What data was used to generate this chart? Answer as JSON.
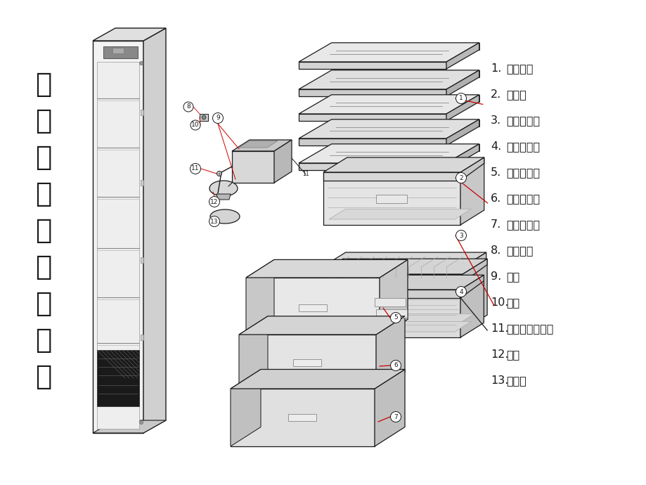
{
  "title_vertical": "冷藏室冷冻室爆炸图",
  "background_color": "#ffffff",
  "line_color": "#1a1a1a",
  "red_line_color": "#cc0000",
  "legend_nums": [
    "1.",
    "2.",
    "3.",
    "4.",
    "5.",
    "6.",
    "7.",
    "8.",
    "9.",
    "10.",
    "11.",
    "12.",
    "13."
  ],
  "legend_cn": [
    "玻璃搁板",
    "果菜盒",
    "保鲜隔热板",
    "保鲜室抽屉",
    "变温室抽屉",
    "小冷冻抽屉",
    "大冷冻抽屉",
    "门灯开关",
    "灯盒",
    "灯座",
    "十字槽盘头螺钉",
    "灯泡",
    "灯盒盖"
  ]
}
